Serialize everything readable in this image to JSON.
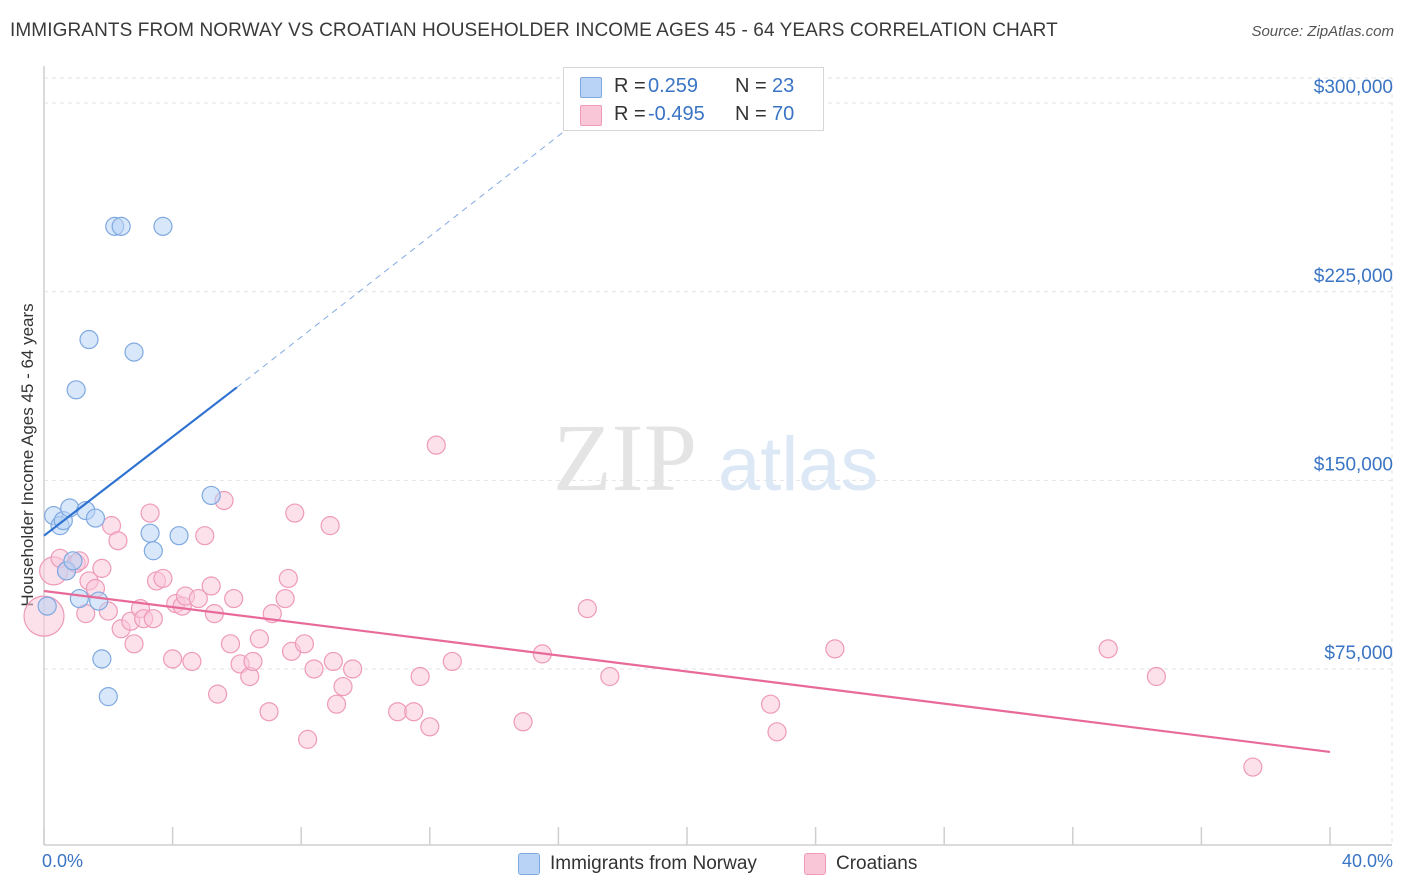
{
  "title": "IMMIGRANTS FROM NORWAY VS CROATIAN HOUSEHOLDER INCOME AGES 45 - 64 YEARS CORRELATION CHART",
  "source": "Source: ZipAtlas.com",
  "watermark": {
    "zip": "ZIP",
    "atlas": "atlas"
  },
  "legend_top": {
    "rows": [
      {
        "r_label": "R =",
        "r_value": "0.259",
        "n_label": "N =",
        "n_value": "23",
        "fill": "#b8d3f5",
        "stroke": "#7fa9e0"
      },
      {
        "r_label": "R =",
        "r_value": "-0.495",
        "n_label": "N =",
        "n_value": "70",
        "fill": "#f9c6d8",
        "stroke": "#ee9ab9"
      }
    ]
  },
  "legend_bottom": {
    "items": [
      {
        "label": "Immigrants from Norway",
        "fill": "#b8d3f5",
        "stroke": "#7fa9e0"
      },
      {
        "label": "Croatians",
        "fill": "#f9c6d8",
        "stroke": "#ee9ab9"
      }
    ]
  },
  "chart_data": {
    "type": "scatter",
    "title": "IMMIGRANTS FROM NORWAY VS CROATIAN HOUSEHOLDER INCOME AGES 45 - 64 YEARS CORRELATION CHART",
    "xlabel": "",
    "ylabel": "Householder Income Ages 45 - 64 years",
    "xlim": [
      0,
      40
    ],
    "ylim": [
      5000,
      310000
    ],
    "x_tick_labels": [
      "0.0%",
      "40.0%"
    ],
    "y_ticks": [
      75000,
      150000,
      225000,
      300000
    ],
    "y_tick_labels": [
      "$75,000",
      "$150,000",
      "$225,000",
      "$300,000"
    ],
    "grid": true,
    "legend_position": "top-center",
    "colors": {
      "norway": "#7fa9e0",
      "norway_fill": "#b8d3f5",
      "croatians": "#ee9ab9",
      "croatians_fill": "#f9c6d8",
      "norway_line": "#2f72d0",
      "croatians_line": "#e86a98",
      "axis_label": "#3a74c4"
    },
    "series": [
      {
        "name": "Immigrants from Norway",
        "points": [
          [
            0.1,
            100000,
            9
          ],
          [
            0.3,
            136000,
            9
          ],
          [
            0.5,
            132000,
            9
          ],
          [
            0.6,
            134000,
            9
          ],
          [
            0.8,
            139000,
            9
          ],
          [
            0.7,
            114000,
            9
          ],
          [
            0.9,
            118000,
            9
          ],
          [
            1.1,
            103000,
            9
          ],
          [
            1.3,
            138000,
            9
          ],
          [
            1.6,
            135000,
            9
          ],
          [
            1.7,
            102000,
            9
          ],
          [
            1.8,
            79000,
            9
          ],
          [
            2.0,
            64000,
            9
          ],
          [
            2.2,
            251000,
            9
          ],
          [
            2.4,
            251000,
            9
          ],
          [
            1.4,
            206000,
            9
          ],
          [
            2.8,
            201000,
            9
          ],
          [
            1.0,
            186000,
            9
          ],
          [
            3.7,
            251000,
            9
          ],
          [
            3.3,
            129000,
            9
          ],
          [
            3.4,
            122000,
            9
          ],
          [
            4.2,
            128000,
            9
          ],
          [
            5.2,
            144000,
            9
          ]
        ]
      },
      {
        "name": "Croatians",
        "points": [
          [
            0.0,
            96000,
            20
          ],
          [
            0.3,
            114000,
            14
          ],
          [
            0.5,
            119000,
            9
          ],
          [
            0.7,
            114000,
            9
          ],
          [
            1.0,
            117000,
            9
          ],
          [
            1.1,
            118000,
            9
          ],
          [
            1.3,
            97000,
            9
          ],
          [
            1.4,
            110000,
            9
          ],
          [
            1.6,
            107000,
            9
          ],
          [
            1.8,
            115000,
            9
          ],
          [
            2.0,
            98000,
            9
          ],
          [
            2.1,
            132000,
            9
          ],
          [
            2.3,
            126000,
            9
          ],
          [
            2.4,
            91000,
            9
          ],
          [
            2.7,
            94000,
            9
          ],
          [
            2.8,
            85000,
            9
          ],
          [
            3.0,
            99000,
            9
          ],
          [
            3.1,
            95000,
            9
          ],
          [
            3.3,
            137000,
            9
          ],
          [
            3.4,
            95000,
            9
          ],
          [
            3.5,
            110000,
            9
          ],
          [
            3.7,
            111000,
            9
          ],
          [
            4.0,
            79000,
            9
          ],
          [
            4.1,
            101000,
            9
          ],
          [
            4.3,
            100000,
            9
          ],
          [
            4.4,
            104000,
            9
          ],
          [
            4.6,
            78000,
            9
          ],
          [
            4.8,
            103000,
            9
          ],
          [
            5.0,
            128000,
            9
          ],
          [
            5.2,
            108000,
            9
          ],
          [
            5.3,
            97000,
            9
          ],
          [
            5.4,
            65000,
            9
          ],
          [
            5.6,
            142000,
            9
          ],
          [
            5.8,
            85000,
            9
          ],
          [
            5.9,
            103000,
            9
          ],
          [
            6.1,
            77000,
            9
          ],
          [
            6.4,
            72000,
            9
          ],
          [
            6.5,
            78000,
            9
          ],
          [
            6.7,
            87000,
            9
          ],
          [
            7.0,
            58000,
            9
          ],
          [
            7.1,
            97000,
            9
          ],
          [
            7.5,
            103000,
            9
          ],
          [
            7.6,
            111000,
            9
          ],
          [
            7.7,
            82000,
            9
          ],
          [
            7.8,
            137000,
            9
          ],
          [
            8.1,
            85000,
            9
          ],
          [
            8.2,
            47000,
            9
          ],
          [
            8.4,
            75000,
            9
          ],
          [
            8.9,
            132000,
            9
          ],
          [
            9.0,
            78000,
            9
          ],
          [
            9.1,
            61000,
            9
          ],
          [
            9.3,
            68000,
            9
          ],
          [
            9.6,
            75000,
            9
          ],
          [
            11.0,
            58000,
            9
          ],
          [
            11.5,
            58000,
            9
          ],
          [
            11.7,
            72000,
            9
          ],
          [
            12.0,
            52000,
            9
          ],
          [
            12.2,
            164000,
            9
          ],
          [
            12.7,
            78000,
            9
          ],
          [
            14.9,
            54000,
            9
          ],
          [
            15.5,
            81000,
            9
          ],
          [
            16.9,
            99000,
            9
          ],
          [
            17.6,
            72000,
            9
          ],
          [
            22.6,
            61000,
            9
          ],
          [
            22.8,
            50000,
            9
          ],
          [
            24.6,
            83000,
            9
          ],
          [
            33.1,
            83000,
            9
          ],
          [
            34.6,
            72000,
            9
          ],
          [
            37.6,
            36000,
            9
          ],
          [
            33.2,
            83000,
            0
          ]
        ]
      }
    ],
    "trendlines": [
      {
        "series": "Immigrants from Norway",
        "solid": [
          [
            0,
            128000
          ],
          [
            6.0,
            187000
          ]
        ],
        "dashed": [
          [
            6.0,
            187000
          ],
          [
            16.5,
            292000
          ]
        ]
      },
      {
        "series": "Croatians",
        "solid": [
          [
            0,
            106000
          ],
          [
            40,
            42000
          ]
        ]
      }
    ]
  }
}
